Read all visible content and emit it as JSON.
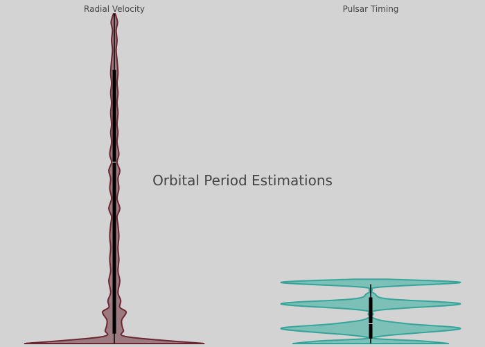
{
  "chart_data": {
    "type": "violin",
    "title": "Orbital Period Estimations",
    "xlabel": "",
    "ylabel": "",
    "grid": false,
    "legend": "none",
    "background": "#d3d3d3",
    "categories": [
      "Radial Velocity",
      "Pulsar Timing"
    ],
    "series": [
      {
        "colors": {
          "fill": "#9c7b80",
          "stroke": "#6b2631"
        },
        "y_range": [
          0,
          1000
        ],
        "quartiles": {
          "min": 0,
          "q1": 30,
          "median": 550,
          "q3": 830,
          "max": 1000
        },
        "density": [
          [
            0,
            0.98
          ],
          [
            20,
            0.15
          ],
          [
            40,
            0.1
          ],
          [
            70,
            0.08
          ],
          [
            95,
            0.13
          ],
          [
            110,
            0.06
          ],
          [
            130,
            0.07
          ],
          [
            155,
            0.04
          ],
          [
            190,
            0.06
          ],
          [
            220,
            0.04
          ],
          [
            255,
            0.05
          ],
          [
            290,
            0.04
          ],
          [
            325,
            0.05
          ],
          [
            360,
            0.04
          ],
          [
            385,
            0.03
          ],
          [
            410,
            0.06
          ],
          [
            440,
            0.03
          ],
          [
            470,
            0.05
          ],
          [
            500,
            0.04
          ],
          [
            525,
            0.06
          ],
          [
            550,
            0.03
          ],
          [
            575,
            0.05
          ],
          [
            610,
            0.03
          ],
          [
            640,
            0.04
          ],
          [
            665,
            0.03
          ],
          [
            700,
            0.04
          ],
          [
            730,
            0.03
          ],
          [
            760,
            0.04
          ],
          [
            790,
            0.03
          ],
          [
            820,
            0.04
          ],
          [
            860,
            0.03
          ],
          [
            890,
            0.02
          ],
          [
            920,
            0.03
          ],
          [
            950,
            0.02
          ],
          [
            975,
            0.035
          ],
          [
            1000,
            0.01
          ]
        ]
      },
      {
        "colors": {
          "fill": "#7cc0b7",
          "stroke": "#35a49a"
        },
        "y_range": [
          0,
          1000
        ],
        "quartiles": {
          "min": 0,
          "q1": 15,
          "median": 60,
          "q3": 140,
          "max": 180
        },
        "density": [
          [
            0,
            0.85
          ],
          [
            8,
            0.55
          ],
          [
            15,
            0.05
          ],
          [
            25,
            0.2
          ],
          [
            45,
            0.98
          ],
          [
            60,
            0.4
          ],
          [
            75,
            0.05
          ],
          [
            100,
            0.06
          ],
          [
            120,
            0.98
          ],
          [
            135,
            0.2
          ],
          [
            150,
            0.05
          ],
          [
            170,
            0.06
          ],
          [
            185,
            0.98
          ],
          [
            195,
            0.2
          ]
        ]
      }
    ]
  }
}
